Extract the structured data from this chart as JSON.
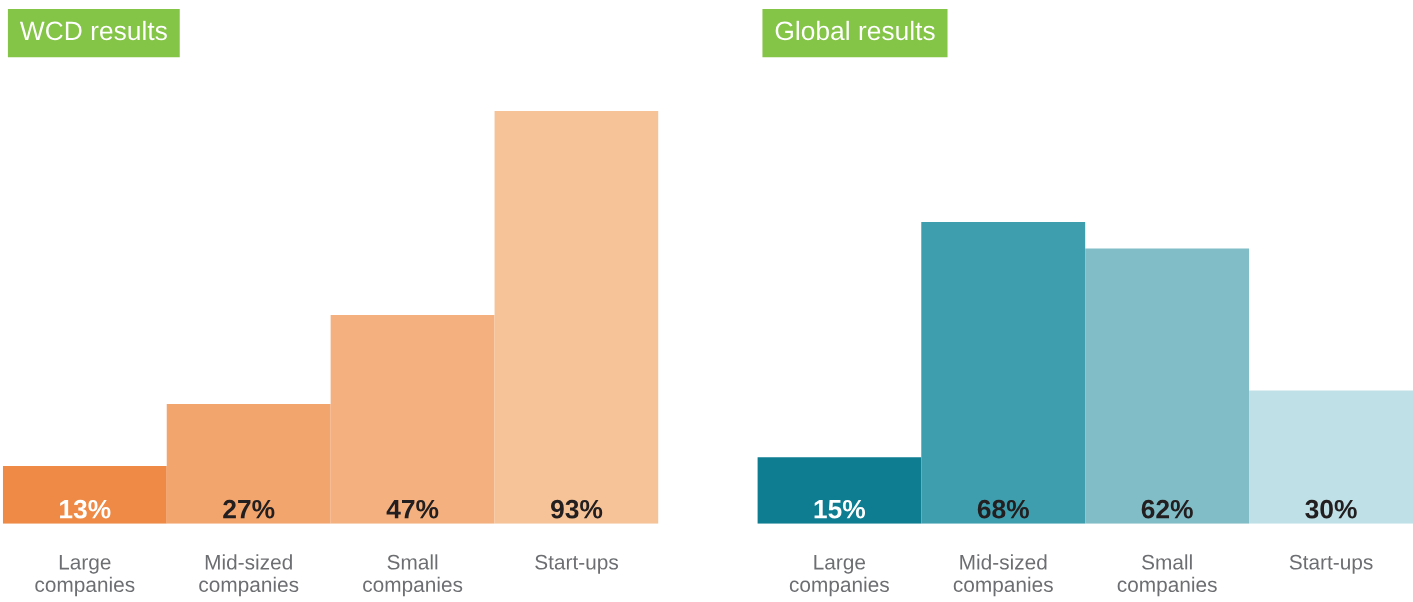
{
  "chart_data": [
    {
      "type": "bar",
      "title": "WCD results",
      "categories": [
        "Large companies",
        "Mid-sized companies",
        "Small companies",
        "Start-ups"
      ],
      "values": [
        13,
        27,
        47,
        93
      ],
      "colors": [
        "#ee8a45",
        "#f3a56e",
        "#f4b07e",
        "#f6c398"
      ],
      "value_labels": [
        "13%",
        "27%",
        "47%",
        "93%"
      ],
      "tick_labels": "x"
    },
    {
      "type": "bar",
      "title": "Global results",
      "categories": [
        "Large companies",
        "Mid-sized companies",
        "Small companies",
        "Start-ups"
      ],
      "values": [
        15,
        68,
        62,
        30
      ],
      "colors": [
        "#0e7c91",
        "#3e9eae",
        "#80bdc7",
        "#bfe0e6"
      ],
      "value_labels": [
        "15%",
        "68%",
        "62%",
        "30%"
      ],
      "tick_labels": "x"
    }
  ]
}
